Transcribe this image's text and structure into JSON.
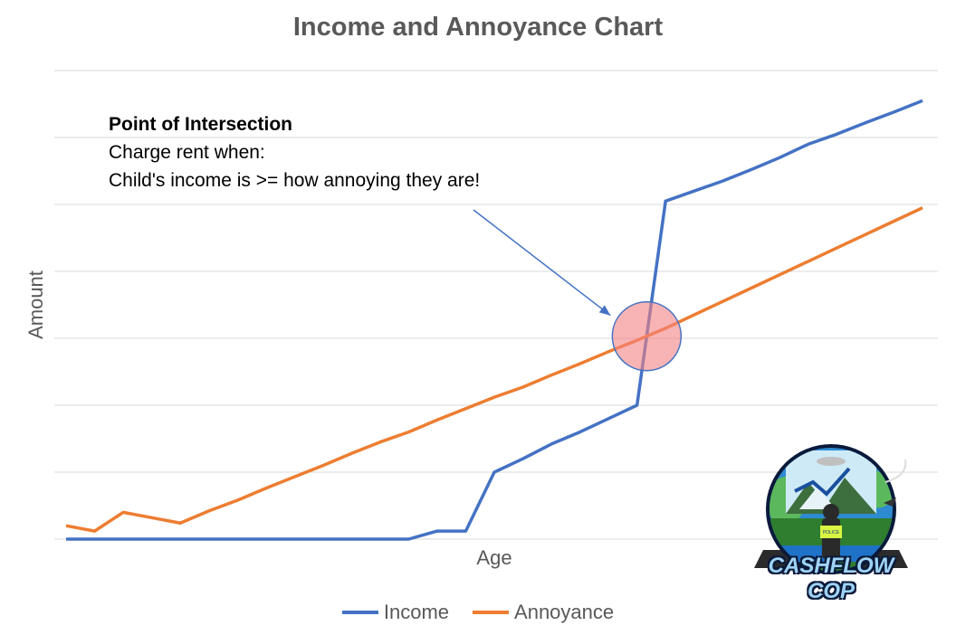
{
  "chart_data": {
    "type": "line",
    "title": "Income and Annoyance Chart",
    "xlabel": "Age",
    "ylabel": "Amount",
    "ylim": [
      0,
      7
    ],
    "grid": true,
    "legend_position": "bottom",
    "x": [
      1,
      2,
      3,
      4,
      5,
      6,
      7,
      8,
      9,
      10,
      11,
      12,
      13,
      14,
      15,
      16,
      17,
      18,
      19,
      20,
      21,
      22,
      23,
      24,
      25,
      26,
      27,
      28,
      29,
      30,
      31
    ],
    "series": [
      {
        "name": "Income",
        "color": "#4472C4",
        "values": [
          0,
          0,
          0,
          0,
          0,
          0,
          0,
          0,
          0,
          0,
          0,
          0,
          0,
          0.12,
          0.12,
          1.0,
          1.2,
          1.42,
          1.6,
          1.8,
          2.0,
          5.05,
          5.2,
          5.35,
          5.52,
          5.7,
          5.9,
          6.05,
          6.22,
          6.38,
          6.55
        ]
      },
      {
        "name": "Annoyance",
        "color": "#ED7D31",
        "values": [
          0.2,
          0.12,
          0.4,
          0.32,
          0.24,
          0.42,
          0.58,
          0.76,
          0.93,
          1.1,
          1.28,
          1.45,
          1.6,
          1.78,
          1.95,
          2.12,
          2.27,
          2.45,
          2.62,
          2.8,
          2.97,
          3.15,
          3.35,
          3.55,
          3.75,
          3.95,
          4.15,
          4.35,
          4.55,
          4.75,
          4.95
        ]
      }
    ],
    "annotations": [
      {
        "head": "Point of Intersection",
        "line1": "Charge rent when:",
        "line2": "Child's income is >= how annoying they are!"
      }
    ]
  },
  "logo": {
    "text": "CASHFLOW COP",
    "badge_text": "POLICE"
  }
}
